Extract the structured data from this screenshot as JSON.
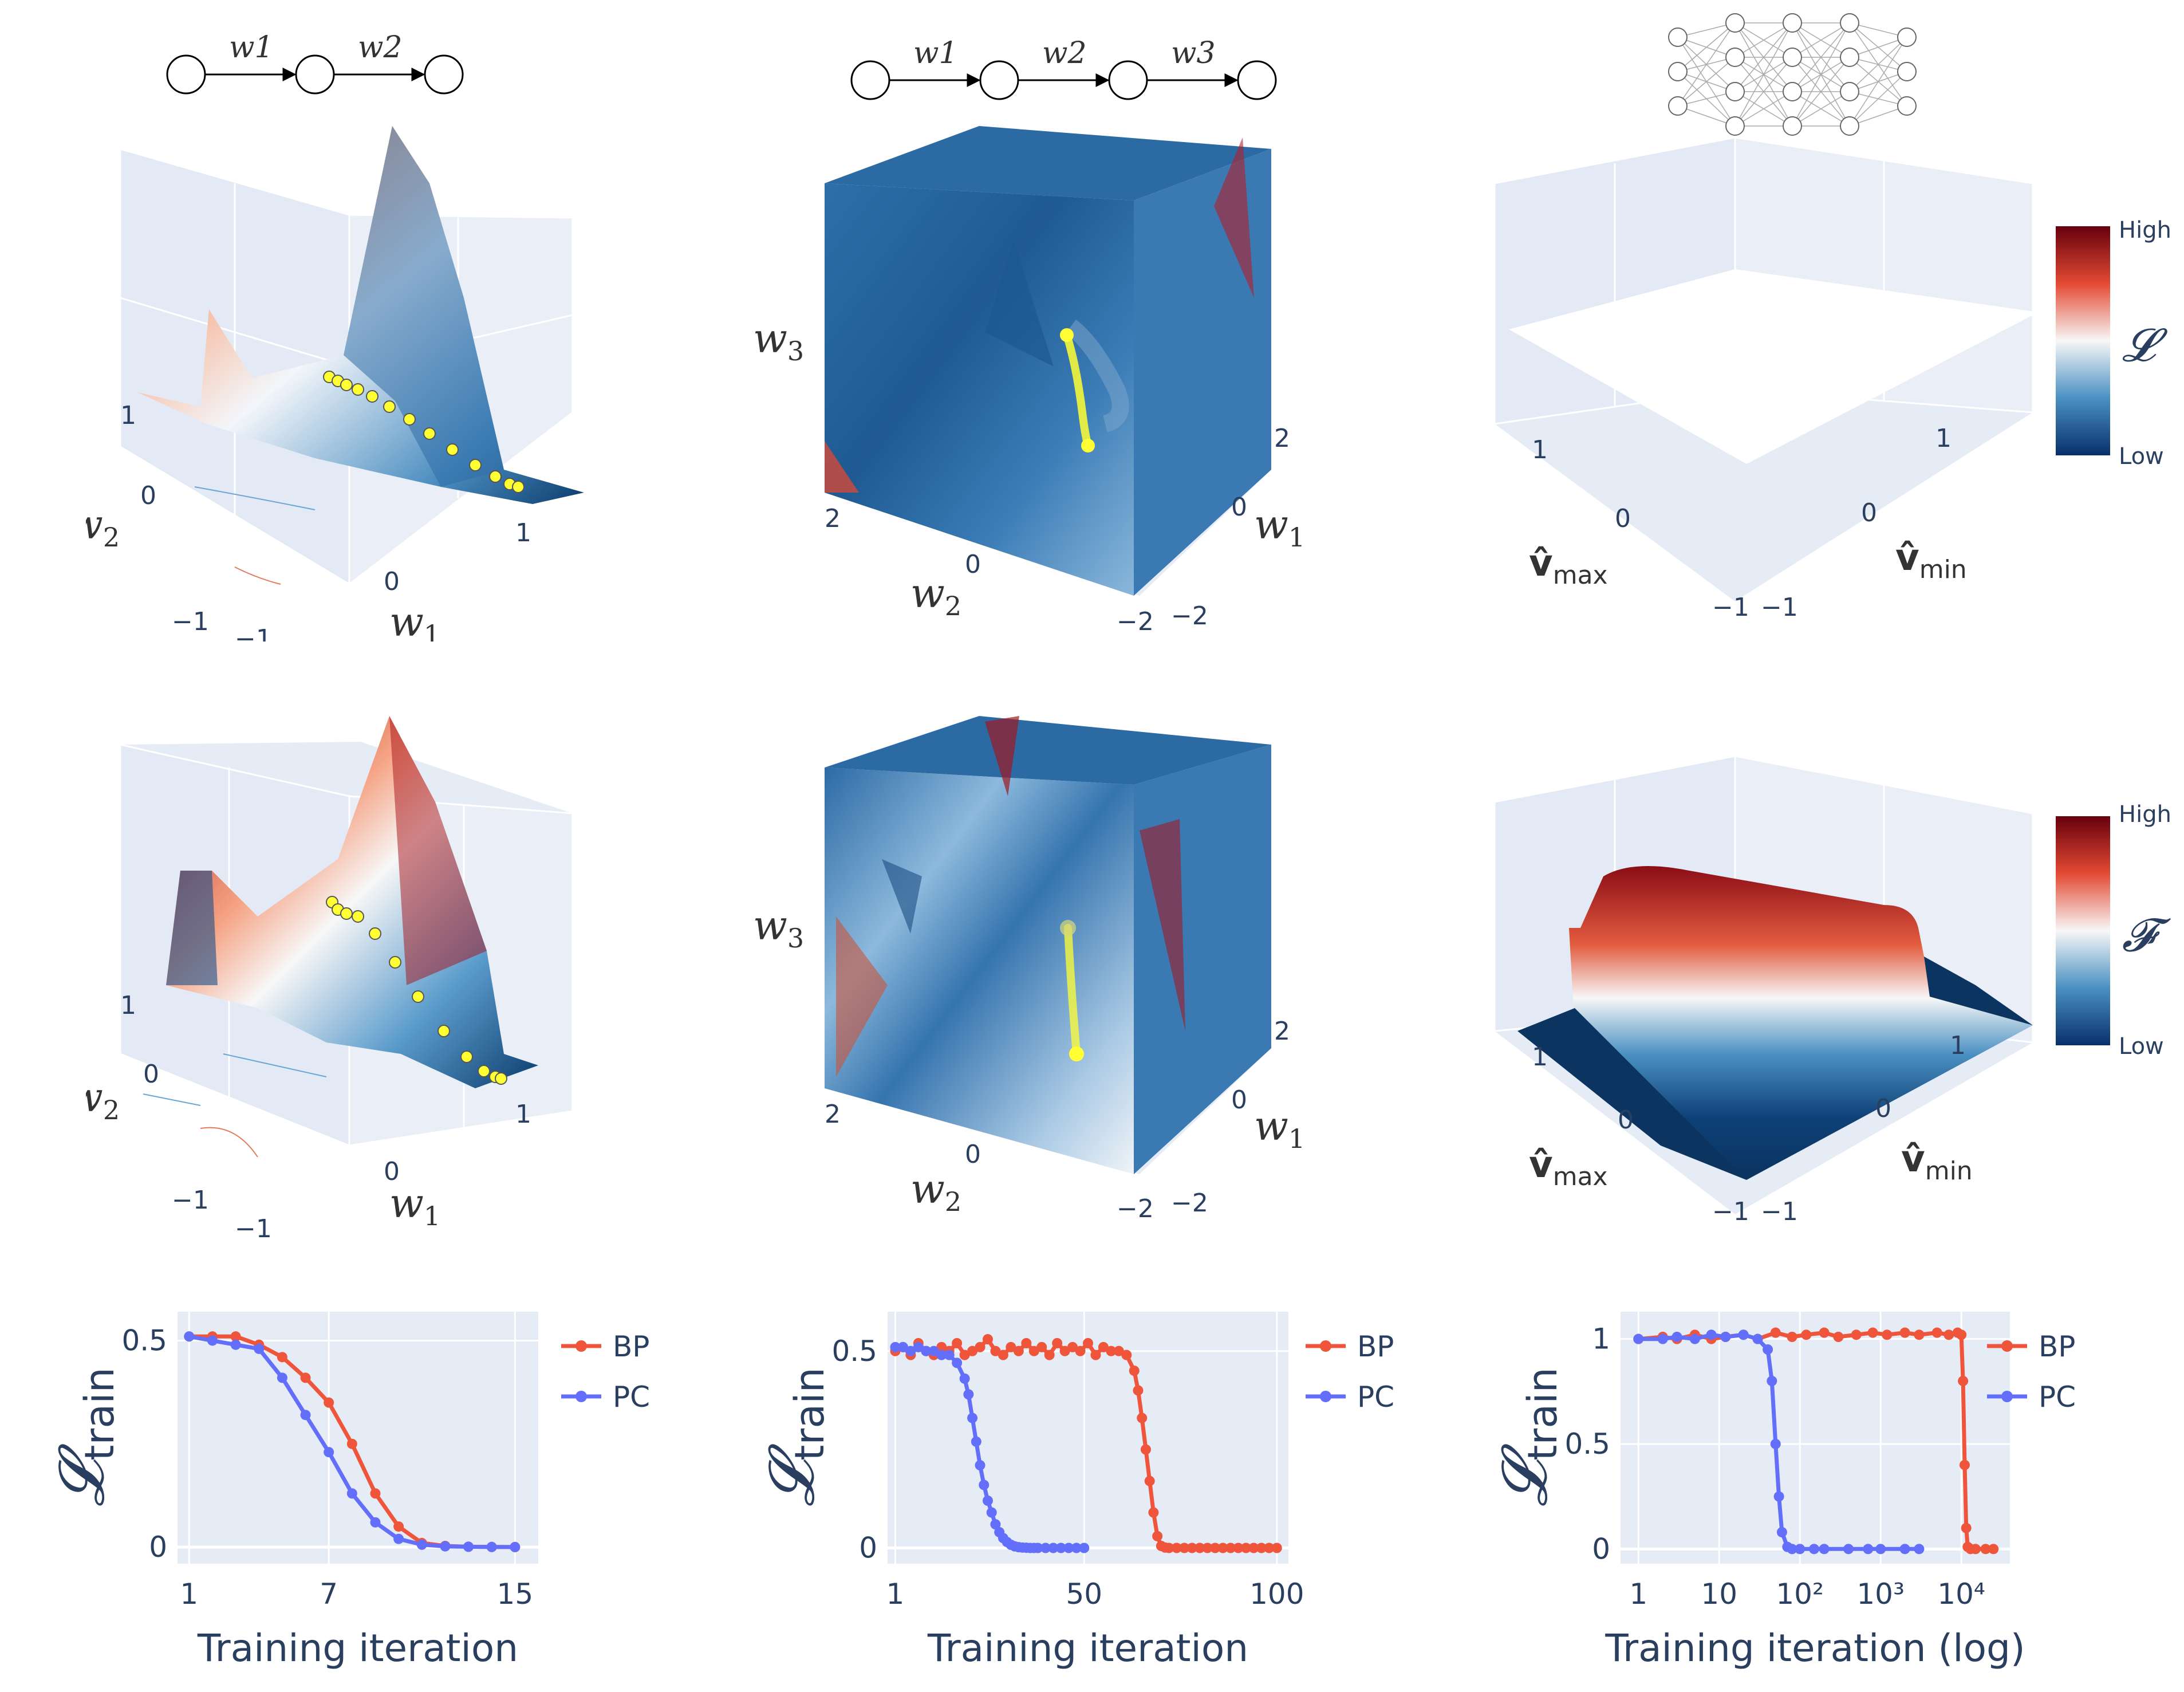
{
  "networks": {
    "n1": {
      "weights": [
        "w1",
        "w2"
      ]
    },
    "n2": {
      "weights": [
        "w1",
        "w2",
        "w3"
      ]
    }
  },
  "axes3d": {
    "w1": "w",
    "w1_sub": "1",
    "w2": "w",
    "w2_sub": "2",
    "w3": "w",
    "w3_sub": "3",
    "vmax": "v̂",
    "vmax_sub": "max",
    "vmin": "v̂",
    "vmin_sub": "min",
    "ticks_1": [
      "1",
      "0",
      "−1"
    ],
    "ticks_2": [
      "2",
      "0",
      "−2"
    ]
  },
  "colorbars": {
    "top": {
      "high": "High",
      "low": "Low",
      "symbol": "𝓛"
    },
    "bottom": {
      "high": "High",
      "low": "Low",
      "symbol": "𝓕"
    }
  },
  "chart_data": [
    {
      "type": "line",
      "ylabel": "𝓛",
      "ylabel_sub": "train",
      "xlabel": "Training iteration",
      "xscale": "linear",
      "xlim": [
        0.5,
        16
      ],
      "ylim": [
        -0.04,
        0.57
      ],
      "xticks": [
        1,
        7,
        15
      ],
      "yticks": [
        0,
        0.5
      ],
      "series": [
        {
          "name": "BP",
          "color": "#ef553b",
          "x": [
            1,
            2,
            3,
            4,
            5,
            6,
            7,
            8,
            9,
            10,
            11,
            12,
            13,
            14,
            15
          ],
          "y": [
            0.51,
            0.51,
            0.51,
            0.49,
            0.46,
            0.41,
            0.35,
            0.25,
            0.13,
            0.05,
            0.01,
            0.003,
            0.001,
            0.0005,
            0.0003
          ]
        },
        {
          "name": "PC",
          "color": "#636efa",
          "x": [
            1,
            2,
            3,
            4,
            5,
            6,
            7,
            8,
            9,
            10,
            11,
            12,
            13,
            14,
            15
          ],
          "y": [
            0.51,
            0.5,
            0.49,
            0.48,
            0.41,
            0.32,
            0.23,
            0.13,
            0.06,
            0.02,
            0.006,
            0.002,
            0.001,
            0.0005,
            0.0003
          ]
        }
      ]
    },
    {
      "type": "line",
      "ylabel": "𝓛",
      "ylabel_sub": "train",
      "xlabel": "Training iteration",
      "xscale": "linear",
      "xlim": [
        -1,
        103
      ],
      "ylim": [
        -0.04,
        0.6
      ],
      "xticks": [
        1,
        50,
        100
      ],
      "yticks": [
        0,
        0.5
      ],
      "series": [
        {
          "name": "BP",
          "color": "#ef553b",
          "x": [
            1,
            3,
            5,
            7,
            9,
            11,
            13,
            15,
            17,
            19,
            21,
            23,
            25,
            27,
            29,
            31,
            33,
            35,
            37,
            39,
            41,
            43,
            45,
            47,
            49,
            51,
            53,
            55,
            57,
            59,
            61,
            63,
            64,
            65,
            66,
            67,
            68,
            69,
            70,
            71,
            72,
            74,
            76,
            78,
            80,
            82,
            84,
            86,
            88,
            90,
            92,
            94,
            96,
            98,
            100
          ],
          "y": [
            0.5,
            0.51,
            0.49,
            0.52,
            0.5,
            0.49,
            0.51,
            0.5,
            0.52,
            0.49,
            0.5,
            0.51,
            0.53,
            0.5,
            0.49,
            0.51,
            0.5,
            0.52,
            0.5,
            0.51,
            0.49,
            0.52,
            0.5,
            0.51,
            0.5,
            0.52,
            0.49,
            0.51,
            0.5,
            0.5,
            0.49,
            0.45,
            0.4,
            0.33,
            0.25,
            0.17,
            0.09,
            0.03,
            0.005,
            0.001,
            0,
            0,
            0,
            0,
            0,
            0,
            0,
            0,
            0,
            0,
            0,
            0,
            0,
            0,
            0
          ]
        },
        {
          "name": "PC",
          "color": "#636efa",
          "x": [
            1,
            3,
            5,
            7,
            9,
            11,
            13,
            15,
            17,
            19,
            20,
            21,
            22,
            23,
            24,
            25,
            26,
            27,
            28,
            29,
            30,
            31,
            32,
            33,
            34,
            35,
            36,
            37,
            38,
            40,
            42,
            44,
            46,
            48,
            50
          ],
          "y": [
            0.51,
            0.51,
            0.5,
            0.51,
            0.5,
            0.5,
            0.49,
            0.49,
            0.47,
            0.43,
            0.39,
            0.33,
            0.27,
            0.21,
            0.16,
            0.12,
            0.09,
            0.06,
            0.04,
            0.025,
            0.015,
            0.008,
            0.004,
            0.002,
            0.001,
            0.0005,
            0,
            0,
            0,
            0,
            0,
            0,
            0,
            0,
            0
          ]
        }
      ]
    },
    {
      "type": "line",
      "ylabel": "𝓛",
      "ylabel_sub": "train",
      "xlabel": "Training iteration (log)",
      "xscale": "log",
      "xlim": [
        0.6,
        40000
      ],
      "ylim": [
        -0.07,
        1.13
      ],
      "xticks": [
        1,
        10,
        100,
        1000,
        10000
      ],
      "xtick_labels": [
        "1",
        "10",
        "10²",
        "10³",
        "10⁴"
      ],
      "yticks": [
        0,
        0.5,
        1
      ],
      "series": [
        {
          "name": "BP",
          "color": "#ef553b",
          "x": [
            1,
            2,
            3,
            5,
            8,
            12,
            20,
            30,
            50,
            80,
            120,
            200,
            300,
            500,
            800,
            1200,
            2000,
            3000,
            5000,
            7000,
            9000,
            10000,
            10500,
            11000,
            11500,
            12000,
            13000,
            15000,
            20000,
            25000
          ],
          "y": [
            1,
            1.01,
            1,
            1.02,
            1,
            1.01,
            1.02,
            1,
            1.03,
            1.01,
            1.02,
            1.03,
            1.01,
            1.02,
            1.03,
            1.02,
            1.03,
            1.02,
            1.03,
            1.02,
            1.03,
            1.02,
            0.8,
            0.4,
            0.1,
            0.01,
            0,
            0,
            0,
            0
          ]
        },
        {
          "name": "PC",
          "color": "#636efa",
          "x": [
            1,
            2,
            3,
            5,
            8,
            12,
            20,
            30,
            40,
            45,
            50,
            55,
            60,
            70,
            80,
            100,
            150,
            200,
            400,
            700,
            1000,
            2000,
            3000
          ],
          "y": [
            1,
            1,
            1.01,
            1,
            1.02,
            1.01,
            1.02,
            1.0,
            0.95,
            0.8,
            0.5,
            0.25,
            0.08,
            0.01,
            0,
            0,
            0,
            0,
            0,
            0,
            0,
            0,
            0
          ]
        }
      ]
    }
  ]
}
